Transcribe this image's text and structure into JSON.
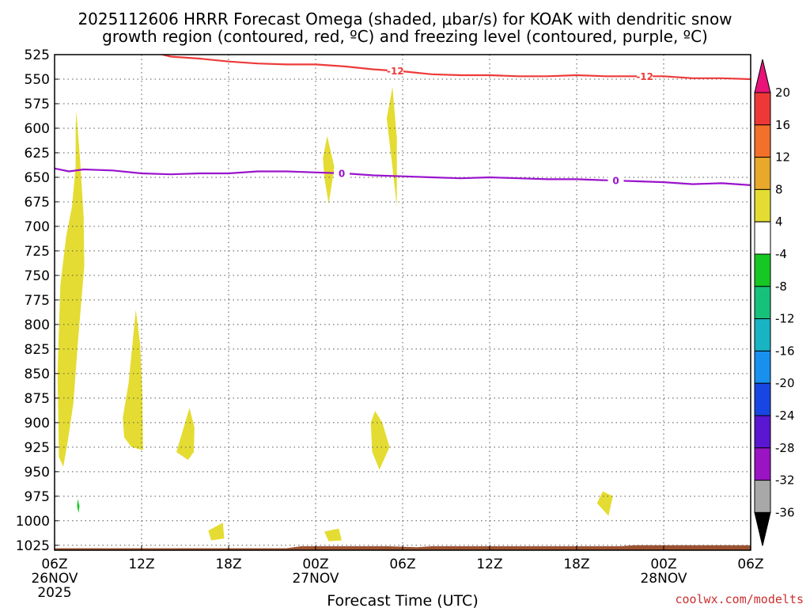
{
  "chart_data": {
    "type": "heatmap",
    "title_line1": "2025112606 HRRR Forecast Omega (shaded, μbar/s) for KOAK with dendritic snow",
    "title_line2": "growth region (contoured, red, ºC) and freezing level (contoured, purple, ºC)",
    "xlabel": "Forecast Time (UTC)",
    "credit": "coolwx.com/modelts",
    "x_range_hours": [
      0,
      48
    ],
    "y_range_hpa": [
      525,
      1030
    ],
    "y_ticks": [
      "525",
      "550",
      "575",
      "600",
      "625",
      "650",
      "675",
      "700",
      "725",
      "750",
      "775",
      "800",
      "825",
      "850",
      "875",
      "900",
      "925",
      "950",
      "975",
      "1000",
      "1025"
    ],
    "x_ticks": [
      {
        "h": 0,
        "label": "06Z"
      },
      {
        "h": 6,
        "label": "12Z"
      },
      {
        "h": 12,
        "label": "18Z"
      },
      {
        "h": 18,
        "label": "00Z"
      },
      {
        "h": 24,
        "label": "06Z"
      },
      {
        "h": 30,
        "label": "12Z"
      },
      {
        "h": 36,
        "label": "18Z"
      },
      {
        "h": 42,
        "label": "00Z"
      },
      {
        "h": 48,
        "label": "06Z"
      }
    ],
    "date_labels": [
      {
        "h": 0,
        "text": "26NOV"
      },
      {
        "h": 0,
        "text": "2025",
        "line": 2
      },
      {
        "h": 18,
        "text": "27NOV"
      },
      {
        "h": 42,
        "text": "28NOV"
      }
    ],
    "red_contour": {
      "label": "-12",
      "color": "#ee3a3a",
      "label_hours": [
        23.5,
        40.7
      ],
      "points": [
        [
          7.2,
          524
        ],
        [
          8,
          527
        ],
        [
          10,
          529
        ],
        [
          12,
          532
        ],
        [
          14,
          534
        ],
        [
          16,
          535
        ],
        [
          18,
          535
        ],
        [
          20,
          537
        ],
        [
          22,
          540
        ],
        [
          24,
          542
        ],
        [
          26,
          545
        ],
        [
          28,
          546
        ],
        [
          30,
          546
        ],
        [
          32,
          547
        ],
        [
          34,
          547
        ],
        [
          36,
          546
        ],
        [
          38,
          547
        ],
        [
          40,
          547
        ],
        [
          42,
          547
        ],
        [
          44,
          549
        ],
        [
          46,
          549
        ],
        [
          48,
          550
        ]
      ]
    },
    "purple_contour": {
      "label": "0",
      "color": "#9a14cc",
      "label_hours": [
        19.8,
        38.7
      ],
      "points": [
        [
          0,
          641
        ],
        [
          1,
          644
        ],
        [
          2,
          642
        ],
        [
          4,
          643
        ],
        [
          6,
          646
        ],
        [
          8,
          647
        ],
        [
          10,
          646
        ],
        [
          12,
          646
        ],
        [
          14,
          644
        ],
        [
          16,
          644
        ],
        [
          18,
          645
        ],
        [
          20,
          646
        ],
        [
          22,
          648
        ],
        [
          24,
          649
        ],
        [
          26,
          650
        ],
        [
          28,
          651
        ],
        [
          30,
          650
        ],
        [
          32,
          651
        ],
        [
          34,
          652
        ],
        [
          36,
          652
        ],
        [
          38,
          653
        ],
        [
          40,
          654
        ],
        [
          42,
          655
        ],
        [
          44,
          657
        ],
        [
          46,
          656
        ],
        [
          48,
          658
        ]
      ]
    },
    "omega_regions": [
      {
        "value": 4,
        "color": "#e4dc32",
        "points": [
          [
            1.5,
            583
          ],
          [
            1.75,
            630
          ],
          [
            2.0,
            690
          ],
          [
            2.05,
            740
          ],
          [
            1.6,
            820
          ],
          [
            1.3,
            880
          ],
          [
            0.9,
            920
          ],
          [
            0.6,
            945
          ],
          [
            0.3,
            935
          ],
          [
            0.2,
            850
          ],
          [
            0.4,
            760
          ],
          [
            0.8,
            710
          ],
          [
            1.2,
            680
          ],
          [
            1.45,
            640
          ],
          [
            1.45,
            600
          ]
        ]
      },
      {
        "value": 4,
        "color": "#e4dc32",
        "points": [
          [
            5.6,
            785
          ],
          [
            5.9,
            820
          ],
          [
            6.05,
            870
          ],
          [
            6.1,
            928
          ],
          [
            5.3,
            925
          ],
          [
            4.8,
            915
          ],
          [
            4.7,
            895
          ],
          [
            5.1,
            860
          ],
          [
            5.4,
            815
          ]
        ]
      },
      {
        "value": 4,
        "color": "#e4dc32",
        "points": [
          [
            9.3,
            885
          ],
          [
            9.65,
            905
          ],
          [
            9.6,
            930
          ],
          [
            9.2,
            938
          ],
          [
            8.4,
            930
          ],
          [
            8.9,
            905
          ]
        ]
      },
      {
        "value": 4,
        "color": "#e4dc32",
        "points": [
          [
            10.6,
            1010
          ],
          [
            11.6,
            1002
          ],
          [
            11.7,
            1018
          ],
          [
            10.8,
            1020
          ]
        ]
      },
      {
        "value": 4,
        "color": "#e4dc32",
        "points": [
          [
            18.6,
            1011
          ],
          [
            19.6,
            1008
          ],
          [
            19.8,
            1020
          ],
          [
            18.9,
            1021
          ]
        ]
      },
      {
        "value": 4,
        "color": "#e4dc32",
        "points": [
          [
            18.8,
            608
          ],
          [
            19.3,
            640
          ],
          [
            18.9,
            677
          ],
          [
            18.6,
            650
          ],
          [
            18.5,
            630
          ]
        ]
      },
      {
        "value": 4,
        "color": "#e4dc32",
        "points": [
          [
            23.3,
            558
          ],
          [
            23.6,
            610
          ],
          [
            23.6,
            680
          ],
          [
            23.3,
            640
          ],
          [
            22.9,
            590
          ]
        ]
      },
      {
        "value": 4,
        "color": "#e4dc32",
        "points": [
          [
            22.1,
            888
          ],
          [
            22.6,
            900
          ],
          [
            23.1,
            925
          ],
          [
            22.4,
            948
          ],
          [
            21.9,
            930
          ],
          [
            21.8,
            900
          ]
        ]
      },
      {
        "value": 4,
        "color": "#e4dc32",
        "points": [
          [
            37.8,
            970
          ],
          [
            38.5,
            975
          ],
          [
            38.2,
            995
          ],
          [
            37.4,
            982
          ]
        ]
      },
      {
        "value": -4,
        "color": "#16c824",
        "points": [
          [
            1.6,
            978
          ],
          [
            1.72,
            985
          ],
          [
            1.65,
            992
          ],
          [
            1.55,
            985
          ]
        ]
      }
    ],
    "terrain": {
      "color": "#9b5230",
      "top_points": [
        [
          0,
          1028
        ],
        [
          16,
          1028
        ],
        [
          17,
          1026
        ],
        [
          23,
          1026
        ],
        [
          25,
          1027
        ],
        [
          26,
          1026
        ],
        [
          39,
          1026
        ],
        [
          40,
          1025
        ],
        [
          48,
          1025
        ]
      ]
    },
    "colorbar": {
      "labels": [
        "20",
        "16",
        "12",
        "8",
        "4",
        "-4",
        "-8",
        "-12",
        "-16",
        "-20",
        "-24",
        "-28",
        "-32",
        "-36"
      ],
      "colors": [
        "#ee3838",
        "#f2702a",
        "#e8a82c",
        "#e4dc32",
        "#ffffff",
        "#16c824",
        "#16c27a",
        "#18b4c4",
        "#1890ee",
        "#1846e2",
        "#5a16d0",
        "#9a14c4",
        "#a8a8a8"
      ],
      "top_arrow_color": "#e8147a",
      "bottom_arrow_color": "#000000"
    }
  }
}
